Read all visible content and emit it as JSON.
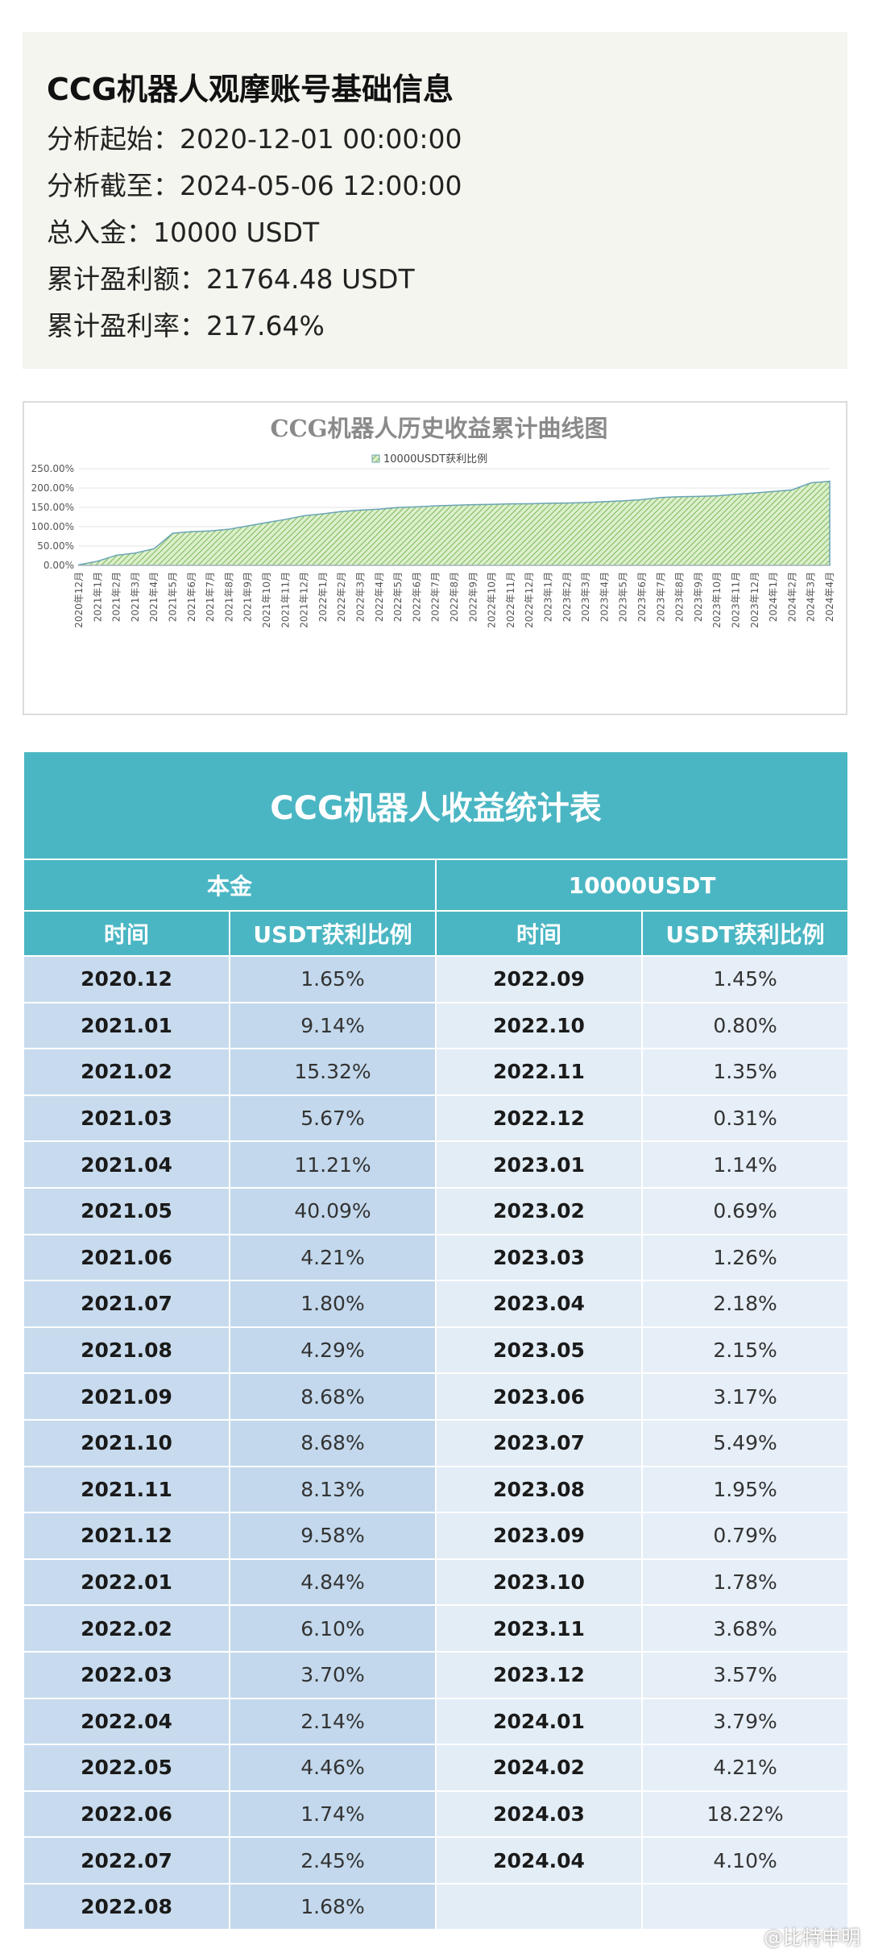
{
  "info": {
    "title": "CCG机器人观摩账号基础信息",
    "lines": [
      "分析起始：2020-12-01 00:00:00",
      "分析截至：2024-05-06 12:00:00",
      "总入金：10000 USDT",
      "累计盈利额：21764.48 USDT",
      "累计盈利率：217.64%"
    ]
  },
  "chart_data": {
    "type": "area",
    "title": "CCG机器人历史收益累计曲线图",
    "series": [
      {
        "name": "10000USDT获利比例",
        "color": "#8fc46a",
        "values": [
          1.65,
          10.79,
          26.11,
          31.78,
          42.99,
          83.08,
          87.29,
          89.09,
          93.38,
          102.06,
          110.74,
          118.87,
          128.45,
          133.29,
          139.39,
          143.09,
          145.23,
          149.69,
          151.43,
          153.88,
          155.56,
          157.01,
          157.81,
          159.16,
          159.47,
          160.61,
          161.3,
          162.56,
          164.74,
          166.89,
          170.06,
          175.55,
          177.5,
          178.29,
          180.07,
          183.75,
          187.32,
          191.11,
          195.32,
          213.54,
          217.64
        ]
      }
    ],
    "categories": [
      "2020年12月",
      "2021年1月",
      "2021年2月",
      "2021年3月",
      "2021年4月",
      "2021年5月",
      "2021年6月",
      "2021年7月",
      "2021年8月",
      "2021年9月",
      "2021年10月",
      "2021年11月",
      "2021年12月",
      "2022年1月",
      "2022年2月",
      "2022年3月",
      "2022年4月",
      "2022年5月",
      "2022年6月",
      "2022年7月",
      "2022年8月",
      "2022年9月",
      "2022年10月",
      "2022年11月",
      "2022年12月",
      "2023年1月",
      "2023年2月",
      "2023年3月",
      "2023年4月",
      "2023年5月",
      "2023年6月",
      "2023年7月",
      "2023年8月",
      "2023年9月",
      "2023年10月",
      "2023年11月",
      "2023年12月",
      "2024年1月",
      "2024年2月",
      "2024年3月",
      "2024年4月"
    ],
    "yticks": [
      "0.00%",
      "50.00%",
      "100.00%",
      "150.00%",
      "200.00%",
      "250.00%"
    ],
    "ylim": [
      0,
      250
    ],
    "legend_position": "top-center",
    "grid": true
  },
  "table": {
    "title": "CCG机器人收益统计表",
    "header_principal_label": "本金",
    "header_principal_value": "10000USDT",
    "col_time": "时间",
    "col_ratio": "USDT获利比例",
    "left_rows": [
      {
        "time": "2020.12",
        "value": "1.65%"
      },
      {
        "time": "2021.01",
        "value": "9.14%"
      },
      {
        "time": "2021.02",
        "value": "15.32%"
      },
      {
        "time": "2021.03",
        "value": "5.67%"
      },
      {
        "time": "2021.04",
        "value": "11.21%"
      },
      {
        "time": "2021.05",
        "value": "40.09%"
      },
      {
        "time": "2021.06",
        "value": "4.21%"
      },
      {
        "time": "2021.07",
        "value": "1.80%"
      },
      {
        "time": "2021.08",
        "value": "4.29%"
      },
      {
        "time": "2021.09",
        "value": "8.68%"
      },
      {
        "time": "2021.10",
        "value": "8.68%"
      },
      {
        "time": "2021.11",
        "value": "8.13%"
      },
      {
        "time": "2021.12",
        "value": "9.58%"
      },
      {
        "time": "2022.01",
        "value": "4.84%"
      },
      {
        "time": "2022.02",
        "value": "6.10%"
      },
      {
        "time": "2022.03",
        "value": "3.70%"
      },
      {
        "time": "2022.04",
        "value": "2.14%"
      },
      {
        "time": "2022.05",
        "value": "4.46%"
      },
      {
        "time": "2022.06",
        "value": "1.74%"
      },
      {
        "time": "2022.07",
        "value": "2.45%"
      },
      {
        "time": "2022.08",
        "value": "1.68%"
      }
    ],
    "right_rows": [
      {
        "time": "2022.09",
        "value": "1.45%"
      },
      {
        "time": "2022.10",
        "value": "0.80%"
      },
      {
        "time": "2022.11",
        "value": "1.35%"
      },
      {
        "time": "2022.12",
        "value": "0.31%"
      },
      {
        "time": "2023.01",
        "value": "1.14%"
      },
      {
        "time": "2023.02",
        "value": "0.69%"
      },
      {
        "time": "2023.03",
        "value": "1.26%"
      },
      {
        "time": "2023.04",
        "value": "2.18%"
      },
      {
        "time": "2023.05",
        "value": "2.15%"
      },
      {
        "time": "2023.06",
        "value": "3.17%"
      },
      {
        "time": "2023.07",
        "value": "5.49%"
      },
      {
        "time": "2023.08",
        "value": "1.95%"
      },
      {
        "time": "2023.09",
        "value": "0.79%"
      },
      {
        "time": "2023.10",
        "value": "1.78%"
      },
      {
        "time": "2023.11",
        "value": "3.68%"
      },
      {
        "time": "2023.12",
        "value": "3.57%"
      },
      {
        "time": "2024.01",
        "value": "3.79%"
      },
      {
        "time": "2024.02",
        "value": "4.21%"
      },
      {
        "time": "2024.03",
        "value": "18.22%"
      },
      {
        "time": "2024.04",
        "value": "4.10%"
      },
      {
        "time": "",
        "value": ""
      }
    ]
  },
  "watermark": "@比特申明",
  "colors": {
    "table_header": "#4bb6c3",
    "left_cell": "#c3d8ec",
    "right_cell": "#e6eef7",
    "info_bg": "#f3f5ee",
    "area_fill": "#8fc46a"
  }
}
